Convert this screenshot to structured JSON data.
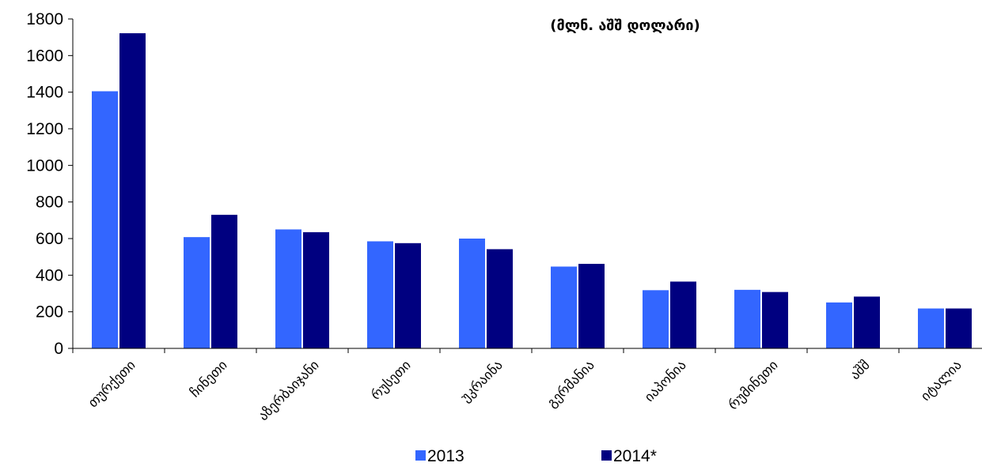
{
  "chart_data": {
    "type": "bar",
    "title": "",
    "subtitle": "(მლნ. აშშ დოლარი)",
    "xlabel": "",
    "ylabel": "",
    "ylim": [
      0,
      1800
    ],
    "yticks": [
      0,
      200,
      400,
      600,
      800,
      1000,
      1200,
      1400,
      1600,
      1800
    ],
    "grid": false,
    "legend_position": "bottom",
    "categories": [
      "თურქეთი",
      "ჩინეთი",
      "აზერბაიჯანი",
      "რუსეთი",
      "უკრაინა",
      "გერმანია",
      "იაპონია",
      "რუმინეთი",
      "აშშ",
      "იტალია"
    ],
    "series": [
      {
        "name": "2013",
        "color": "#3366ff",
        "values": [
          1405,
          608,
          650,
          585,
          600,
          447,
          318,
          320,
          251,
          218
        ]
      },
      {
        "name": "2014*",
        "color": "#000080",
        "values": [
          1722,
          730,
          635,
          575,
          542,
          462,
          365,
          308,
          283,
          218
        ]
      }
    ]
  }
}
